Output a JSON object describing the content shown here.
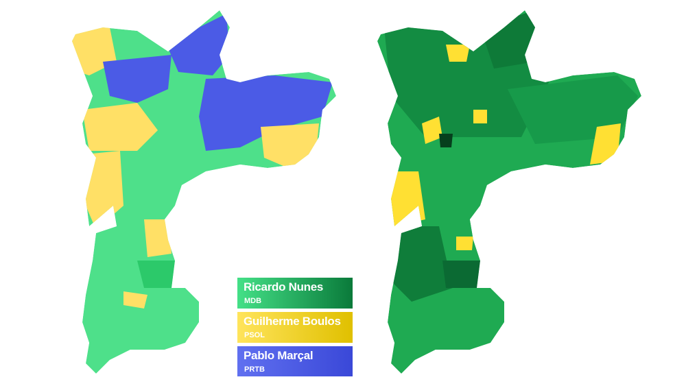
{
  "legend": [
    {
      "name": "Ricardo Nunes",
      "party": "MDB"
    },
    {
      "name": "Guilherme Boulos",
      "party": "PSOL"
    },
    {
      "name": "Pablo Marçal",
      "party": "PRTB"
    }
  ]
}
